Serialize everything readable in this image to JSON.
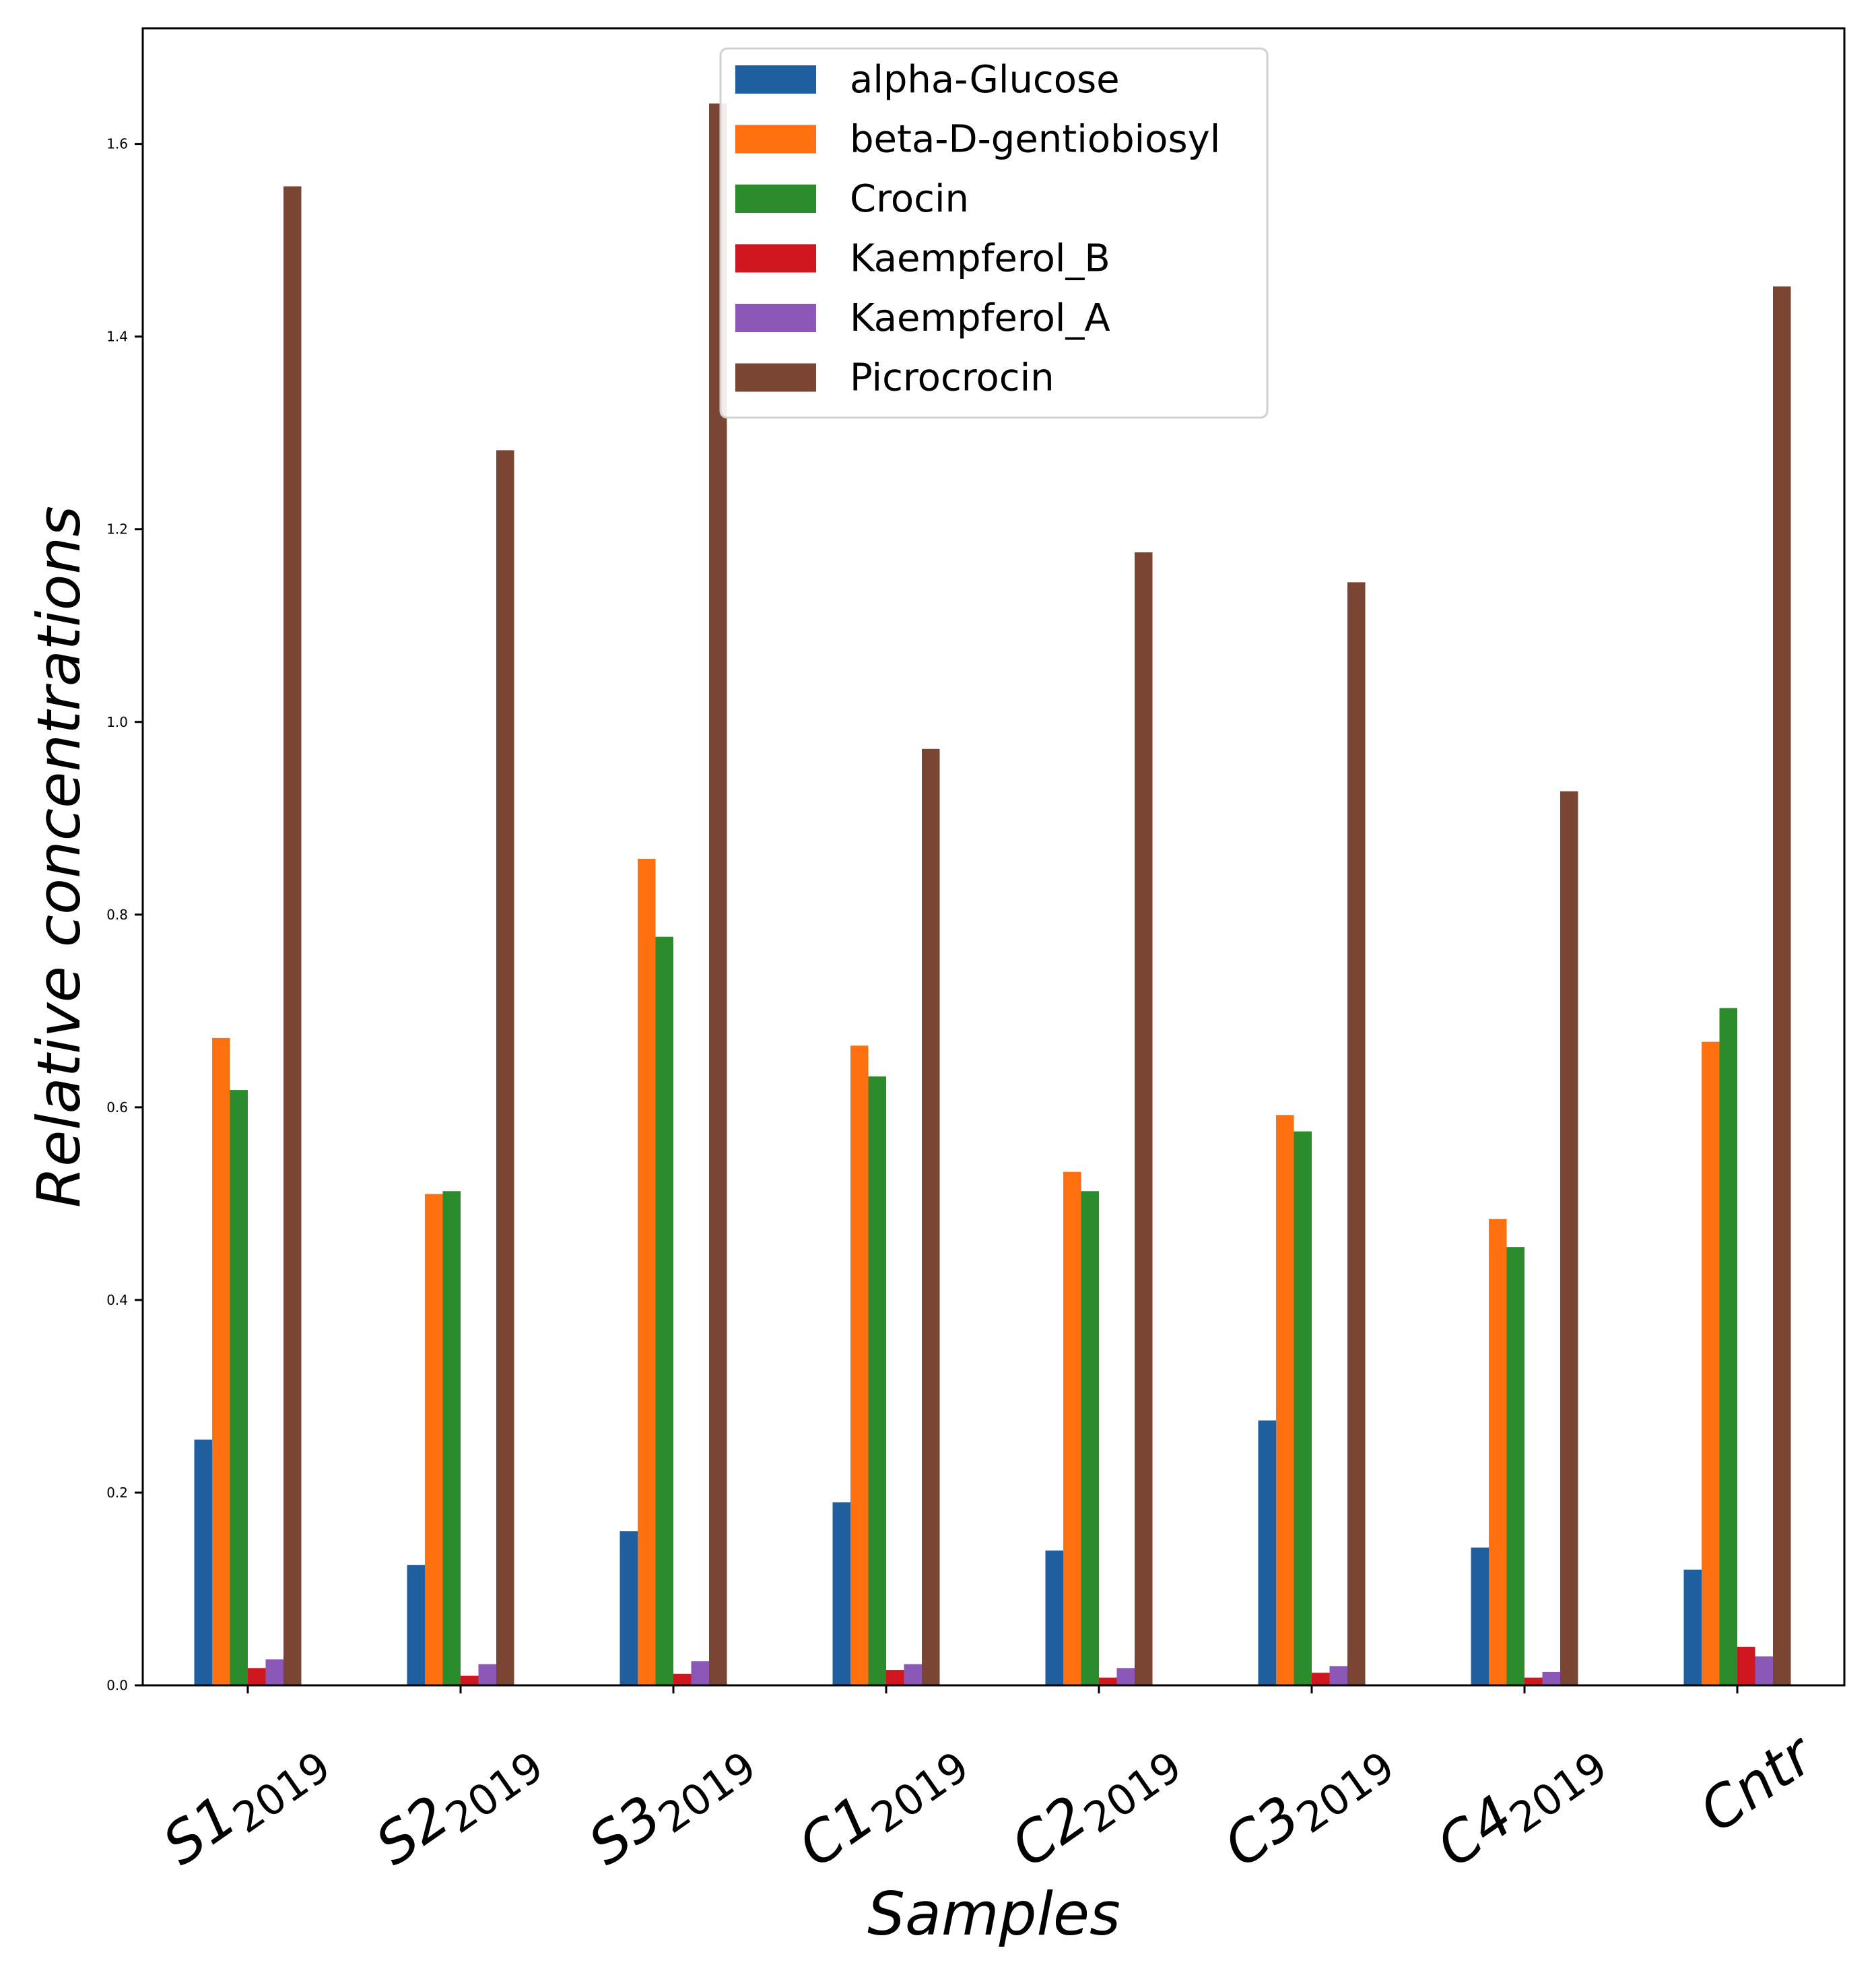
{
  "chart_data": {
    "type": "bar",
    "title": "",
    "xlabel": "Samples",
    "ylabel": "Relative concentrations",
    "ylim": [
      0,
      1.72
    ],
    "yticks": [
      "0.0",
      "0.2",
      "0.4",
      "0.6",
      "0.8",
      "1.0",
      "1.2",
      "1.4",
      "1.6"
    ],
    "categories": [
      {
        "main": "S1",
        "sub": "2019"
      },
      {
        "main": "S2",
        "sub": "2019"
      },
      {
        "main": "S3",
        "sub": "2019"
      },
      {
        "main": "C1",
        "sub": "2019"
      },
      {
        "main": "C2",
        "sub": "2019"
      },
      {
        "main": "C3",
        "sub": "2019"
      },
      {
        "main": "C4",
        "sub": "2019"
      },
      {
        "main": "Cntr",
        "sub": ""
      }
    ],
    "legend_position": "top-center",
    "series": [
      {
        "name": "alpha-Glucose",
        "color": "#1f5fa0",
        "values": [
          0.255,
          0.125,
          0.16,
          0.19,
          0.14,
          0.275,
          0.143,
          0.12
        ]
      },
      {
        "name": "beta-D-gentiobiosyl",
        "color": "#ff7010",
        "values": [
          0.672,
          0.51,
          0.858,
          0.664,
          0.533,
          0.592,
          0.484,
          0.668
        ]
      },
      {
        "name": "Crocin",
        "color": "#2a8c2a",
        "values": [
          0.618,
          0.513,
          0.777,
          0.632,
          0.513,
          0.575,
          0.455,
          0.703
        ]
      },
      {
        "name": "Kaempferol_B",
        "color": "#d0171f",
        "values": [
          0.018,
          0.01,
          0.012,
          0.016,
          0.008,
          0.013,
          0.008,
          0.04
        ]
      },
      {
        "name": "Kaempferol_A",
        "color": "#8b58b8",
        "values": [
          0.027,
          0.022,
          0.025,
          0.022,
          0.018,
          0.02,
          0.014,
          0.03
        ]
      },
      {
        "name": "Picrocrocin",
        "color": "#7b4534",
        "values": [
          1.556,
          1.282,
          1.642,
          0.972,
          1.176,
          1.145,
          0.928,
          1.452
        ]
      }
    ]
  }
}
